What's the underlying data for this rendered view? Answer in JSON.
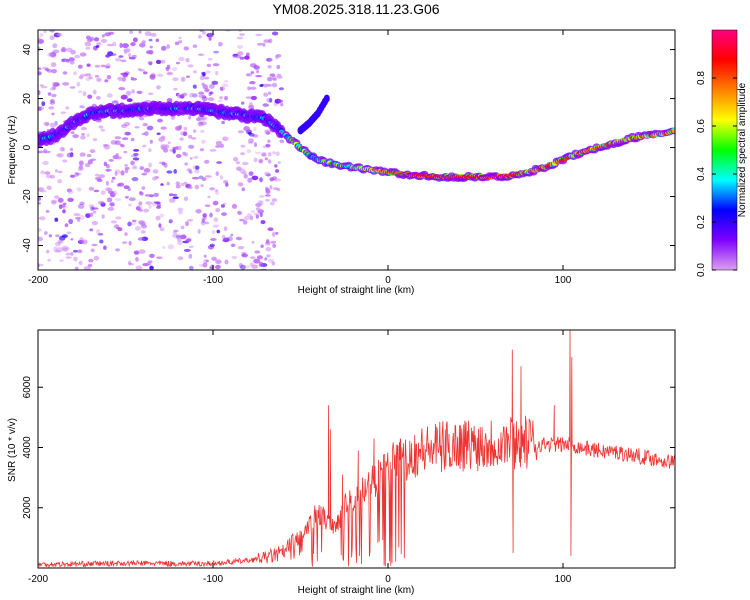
{
  "title": "YM08.2025.318.11.23.G06",
  "chart_data": [
    {
      "type": "heatmap",
      "title": "YM08.2025.318.11.23.G06",
      "xlabel": "Height of straight line (km)",
      "ylabel": "Frequency (Hz)",
      "xlim": [
        -200,
        164
      ],
      "ylim": [
        -50,
        48
      ],
      "xticks": [
        "-200",
        "-100",
        "0",
        "100"
      ],
      "yticks": [
        "-40",
        "-20",
        "0",
        "20",
        "40"
      ],
      "ridge": {
        "x": [
          -200,
          -190,
          -180,
          -170,
          -160,
          -150,
          -140,
          -130,
          -120,
          -110,
          -100,
          -90,
          -80,
          -70,
          -65,
          -60,
          -55,
          -50,
          -45,
          -40,
          -35,
          -30,
          -20,
          -10,
          0,
          10,
          20,
          30,
          40,
          50,
          55,
          60,
          70,
          80,
          90,
          100,
          110,
          120,
          130,
          140,
          150,
          160,
          164
        ],
        "y": [
          3,
          5,
          10,
          14,
          15,
          15,
          16,
          16,
          16,
          16,
          15,
          14,
          13,
          12,
          9,
          6,
          3,
          0,
          -3,
          -5,
          -6,
          -7,
          -8,
          -9,
          -10,
          -11,
          -11.5,
          -12,
          -12,
          -12,
          -12,
          -12,
          -11.5,
          -10,
          -8,
          -5,
          -2,
          0,
          2,
          4,
          5,
          6,
          7
        ]
      },
      "branch": {
        "x": [
          -50,
          -45,
          -40,
          -35
        ],
        "y": [
          7,
          10,
          14,
          20
        ]
      },
      "colorbar": {
        "label": "Normalized spectral amplitude",
        "range": [
          0,
          1
        ],
        "ticks": [
          "0.0",
          "0.2",
          "0.4",
          "0.6",
          "0.8"
        ],
        "stops": [
          "#dca0f0",
          "#7f00ff",
          "#0000ff",
          "#00ffff",
          "#00ff00",
          "#ffff00",
          "#ff8000",
          "#ff0000",
          "#ff0080"
        ]
      }
    },
    {
      "type": "line",
      "xlabel": "Height of straight line (km)",
      "ylabel": "SNR (10 * v/v)",
      "xlim": [
        -200,
        164
      ],
      "ylim": [
        0,
        7900
      ],
      "xticks": [
        "-200",
        "-100",
        "0",
        "100"
      ],
      "yticks": [
        "2000",
        "4000",
        "6000"
      ],
      "color": "#ee3333",
      "envelope": {
        "x": [
          -200,
          -180,
          -160,
          -140,
          -120,
          -100,
          -80,
          -70,
          -60,
          -55,
          -50,
          -45,
          -40,
          -35,
          -30,
          -25,
          -20,
          -15,
          -10,
          -5,
          0,
          10,
          20,
          30,
          40,
          50,
          60,
          70,
          80,
          90,
          100,
          105,
          110,
          120,
          130,
          140,
          150,
          164
        ],
        "y": [
          120,
          130,
          150,
          160,
          140,
          150,
          250,
          350,
          500,
          700,
          900,
          1400,
          1900,
          1600,
          1400,
          2000,
          2200,
          2500,
          2800,
          3100,
          3300,
          3700,
          3900,
          4000,
          4100,
          4100,
          4150,
          4200,
          4150,
          4100,
          4100,
          4100,
          4000,
          3900,
          3850,
          3750,
          3650,
          3500
        ]
      },
      "spikes": [
        {
          "x": -34,
          "y": 5400
        },
        {
          "x": -33,
          "y": 4600
        },
        {
          "x": -26,
          "y": 3100
        },
        {
          "x": -17,
          "y": 3900
        },
        {
          "x": -8,
          "y": 4300
        },
        {
          "x": 7,
          "y": 4300
        },
        {
          "x": 26,
          "y": 4150
        },
        {
          "x": 71,
          "y": 7250
        },
        {
          "x": 71.5,
          "y": 500
        },
        {
          "x": 76,
          "y": 6700
        },
        {
          "x": 95,
          "y": 5400
        },
        {
          "x": 104,
          "y": 7900
        },
        {
          "x": 104.5,
          "y": 400
        },
        {
          "x": 105,
          "y": 7000
        }
      ]
    }
  ]
}
